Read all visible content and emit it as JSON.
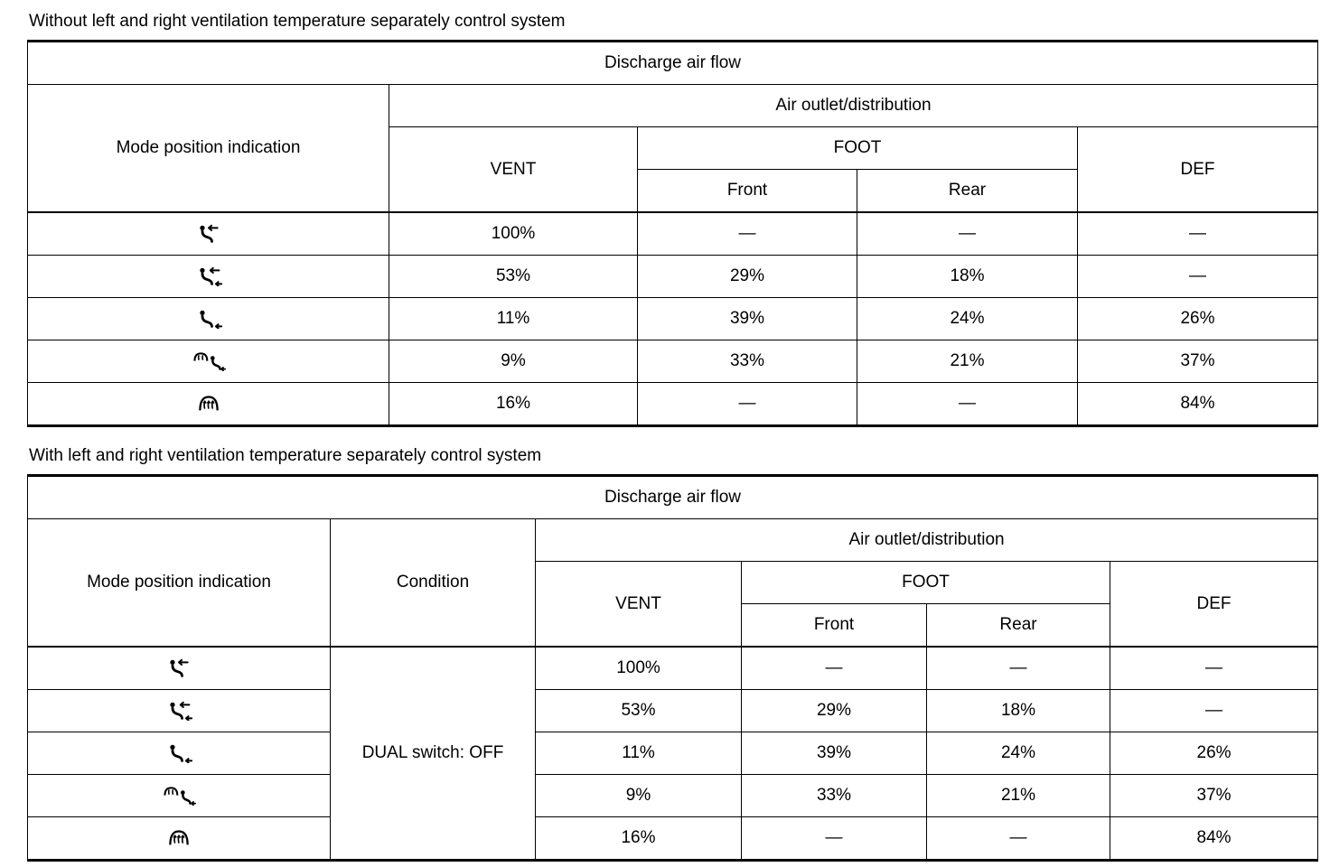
{
  "page": {
    "background": "#ffffff",
    "text_color": "#000000",
    "border_color": "#000000"
  },
  "table1": {
    "caption": "Without left and right ventilation temperature separately control system",
    "title": "Discharge air flow",
    "headers": {
      "mode": "Mode position indication",
      "air_outlet": "Air outlet/distribution",
      "vent": "VENT",
      "foot": "FOOT",
      "front": "Front",
      "rear": "Rear",
      "def": "DEF"
    },
    "rows": [
      {
        "icon": "mode-vent-icon",
        "vent": "100%",
        "foot_front": "—",
        "foot_rear": "—",
        "def": "—"
      },
      {
        "icon": "mode-bilevel-icon",
        "vent": "53%",
        "foot_front": "29%",
        "foot_rear": "18%",
        "def": "—"
      },
      {
        "icon": "mode-foot-icon",
        "vent": "11%",
        "foot_front": "39%",
        "foot_rear": "24%",
        "def": "26%"
      },
      {
        "icon": "mode-defrost-foot-icon",
        "vent": "9%",
        "foot_front": "33%",
        "foot_rear": "21%",
        "def": "37%"
      },
      {
        "icon": "mode-defrost-icon",
        "vent": "16%",
        "foot_front": "—",
        "foot_rear": "—",
        "def": "84%"
      }
    ]
  },
  "table2": {
    "caption": "With left and right ventilation temperature separately control system",
    "title": "Discharge air flow",
    "headers": {
      "mode": "Mode position indication",
      "condition": "Condition",
      "air_outlet": "Air outlet/distribution",
      "vent": "VENT",
      "foot": "FOOT",
      "front": "Front",
      "rear": "Rear",
      "def": "DEF"
    },
    "condition_value": "DUAL switch: OFF",
    "rows": [
      {
        "icon": "mode-vent-icon",
        "vent": "100%",
        "foot_front": "—",
        "foot_rear": "—",
        "def": "—"
      },
      {
        "icon": "mode-bilevel-icon",
        "vent": "53%",
        "foot_front": "29%",
        "foot_rear": "18%",
        "def": "—"
      },
      {
        "icon": "mode-foot-icon",
        "vent": "11%",
        "foot_front": "39%",
        "foot_rear": "24%",
        "def": "26%"
      },
      {
        "icon": "mode-defrost-foot-icon",
        "vent": "9%",
        "foot_front": "33%",
        "foot_rear": "21%",
        "def": "37%"
      },
      {
        "icon": "mode-defrost-icon",
        "vent": "16%",
        "foot_front": "—",
        "foot_rear": "—",
        "def": "84%"
      }
    ]
  }
}
